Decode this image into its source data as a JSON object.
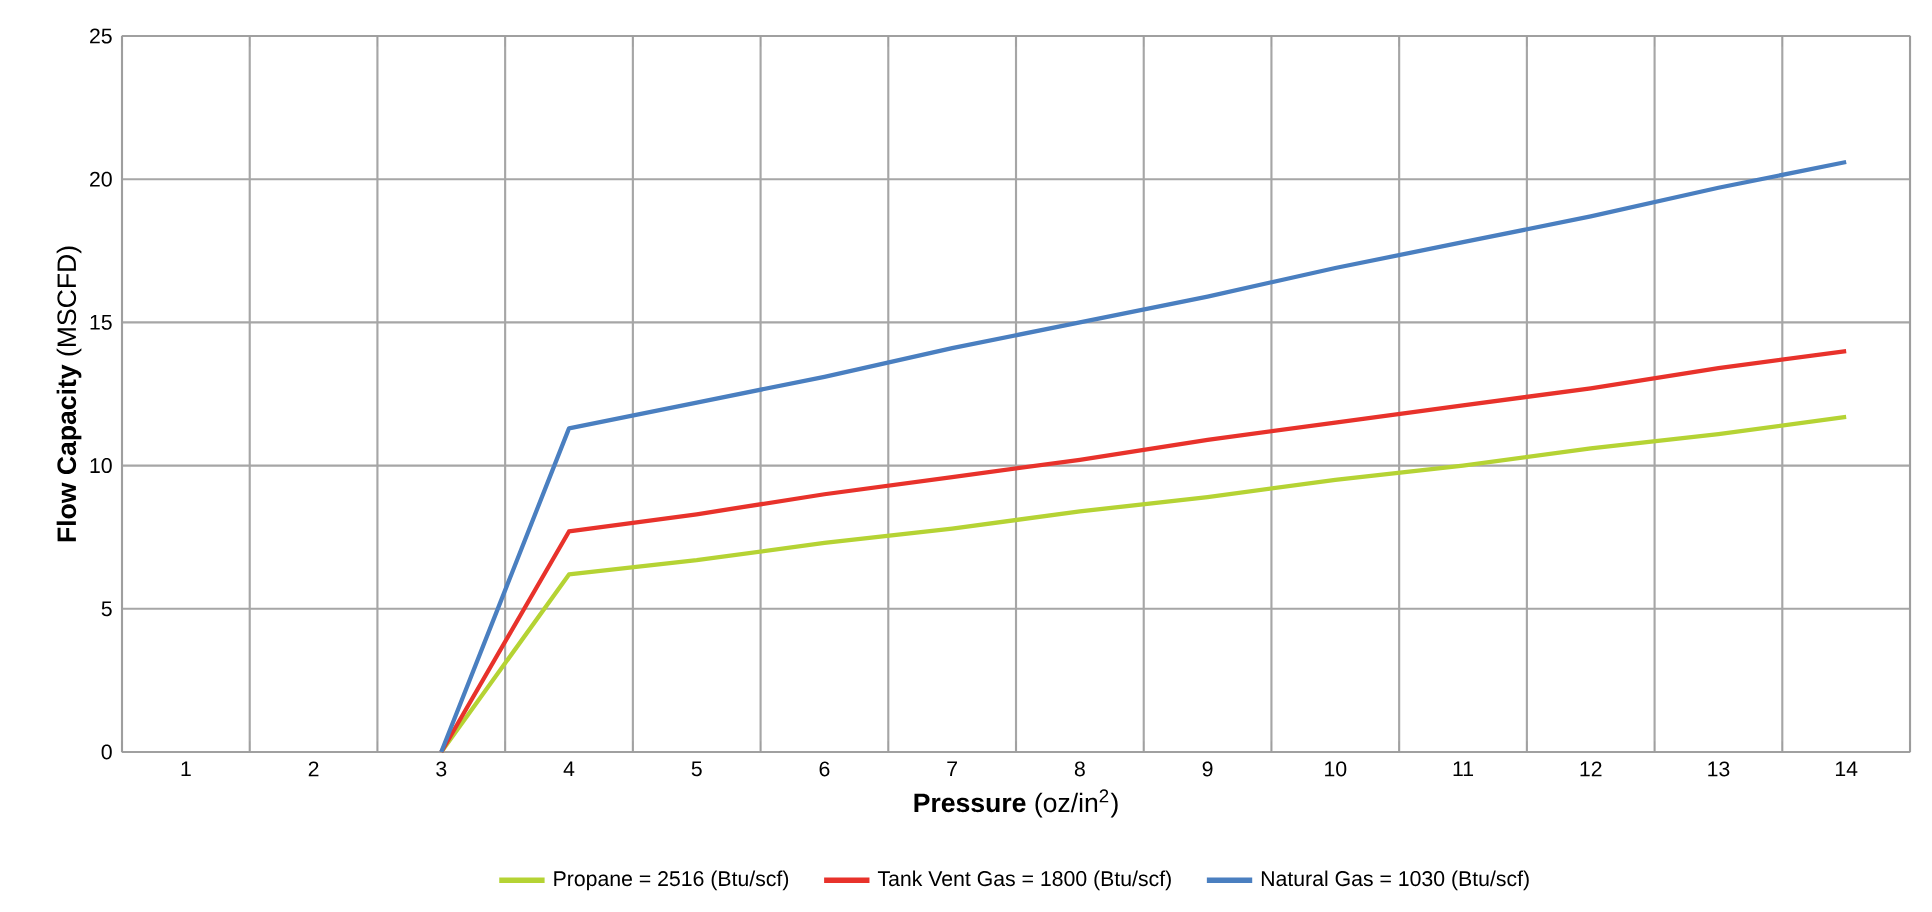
{
  "chart_data": {
    "type": "line",
    "xlabel": "**Pressure** (oz/in$^{2}$)",
    "ylabel": "**Flow Capacity** (MSCFD)",
    "categories": [
      "1",
      "2",
      "3",
      "4",
      "5",
      "6",
      "7",
      "8",
      "9",
      "10",
      "11",
      "12",
      "13",
      "14"
    ],
    "series": [
      {
        "name": "Propane = 2516 (Btu/scf)",
        "color": "#b5d334",
        "values": [
          null,
          null,
          0,
          6.2,
          6.7,
          7.3,
          7.8,
          8.4,
          8.9,
          9.5,
          10.0,
          10.6,
          11.1,
          11.7
        ]
      },
      {
        "name": "Tank Vent Gas = 1800 (Btu/scf)",
        "color": "#e8322b",
        "values": [
          null,
          null,
          0,
          7.7,
          8.3,
          9.0,
          9.6,
          10.2,
          10.9,
          11.5,
          12.1,
          12.7,
          13.4,
          14.0
        ]
      },
      {
        "name": "Natural Gas = 1030 (Btu/scf)",
        "color": "#4a7fc0",
        "values": [
          null,
          null,
          0,
          11.3,
          12.2,
          13.1,
          14.1,
          15.0,
          15.9,
          16.9,
          17.8,
          18.7,
          19.7,
          20.6
        ]
      }
    ],
    "ylim": [
      0,
      25
    ],
    "yticks": [
      0,
      5,
      10,
      15,
      20,
      25
    ],
    "grid": true,
    "legend": "bottom",
    "marker": "none",
    "line_style": "solid"
  }
}
